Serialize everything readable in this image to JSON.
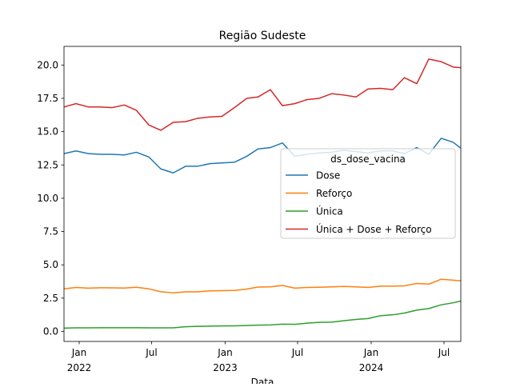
{
  "chart_data": {
    "type": "line",
    "title": "Região Sudeste",
    "xlabel": "Data",
    "ylabel": "",
    "x_type": "date",
    "xlim": [
      "2021-11-24",
      "2024-08-12"
    ],
    "ylim": [
      -0.75,
      21.4
    ],
    "yticks": [
      0.0,
      2.5,
      5.0,
      7.5,
      10.0,
      12.5,
      15.0,
      17.5,
      20.0
    ],
    "ytick_labels": [
      "0.0",
      "2.5",
      "5.0",
      "7.5",
      "10.0",
      "12.5",
      "15.0",
      "17.5",
      "20.0"
    ],
    "xticks": [
      {
        "date": "2022-01-01",
        "label": "Jan",
        "year": "2022"
      },
      {
        "date": "2022-07-01",
        "label": "Jul",
        "year": ""
      },
      {
        "date": "2023-01-01",
        "label": "Jan",
        "year": "2023"
      },
      {
        "date": "2023-07-01",
        "label": "Jul",
        "year": ""
      },
      {
        "date": "2024-01-01",
        "label": "Jan",
        "year": "2024"
      },
      {
        "date": "2024-07-01",
        "label": "Jul",
        "year": ""
      }
    ],
    "x": [
      "2021-11-24",
      "2021-12-24",
      "2022-01-24",
      "2022-02-24",
      "2022-03-24",
      "2022-04-24",
      "2022-05-24",
      "2022-06-24",
      "2022-07-24",
      "2022-08-24",
      "2022-09-24",
      "2022-10-24",
      "2022-11-24",
      "2022-12-24",
      "2023-01-24",
      "2023-02-24",
      "2023-03-24",
      "2023-04-24",
      "2023-05-24",
      "2023-06-24",
      "2023-07-24",
      "2023-08-24",
      "2023-09-24",
      "2023-10-24",
      "2023-11-24",
      "2023-12-24",
      "2024-01-24",
      "2024-02-24",
      "2024-03-24",
      "2024-04-24",
      "2024-05-24",
      "2024-06-24",
      "2024-07-24",
      "2024-08-12"
    ],
    "series": [
      {
        "name": "Dose",
        "color": "#1f77b4",
        "values": [
          13.35,
          13.55,
          13.35,
          13.3,
          13.3,
          13.25,
          13.45,
          13.1,
          12.2,
          11.9,
          12.4,
          12.4,
          12.6,
          12.65,
          12.7,
          13.15,
          13.7,
          13.8,
          14.15,
          13.15,
          13.3,
          13.4,
          13.45,
          13.6,
          13.5,
          13.4,
          13.55,
          13.55,
          13.35,
          13.8,
          13.3,
          14.5,
          14.2,
          13.75
        ]
      },
      {
        "name": "Reforço",
        "color": "#ff7f0e",
        "values": [
          3.2,
          3.3,
          3.25,
          3.28,
          3.27,
          3.26,
          3.32,
          3.2,
          2.98,
          2.9,
          2.97,
          2.97,
          3.05,
          3.06,
          3.08,
          3.18,
          3.33,
          3.35,
          3.45,
          3.25,
          3.3,
          3.32,
          3.35,
          3.38,
          3.35,
          3.3,
          3.4,
          3.4,
          3.42,
          3.6,
          3.55,
          3.92,
          3.85,
          3.8
        ]
      },
      {
        "name": "Única",
        "color": "#2ca02c",
        "values": [
          0.25,
          0.27,
          0.27,
          0.28,
          0.28,
          0.28,
          0.28,
          0.27,
          0.27,
          0.27,
          0.35,
          0.38,
          0.4,
          0.41,
          0.42,
          0.44,
          0.47,
          0.49,
          0.55,
          0.53,
          0.62,
          0.68,
          0.7,
          0.8,
          0.9,
          0.97,
          1.18,
          1.25,
          1.38,
          1.6,
          1.72,
          2.0,
          2.15,
          2.28
        ]
      },
      {
        "name": "Única + Dose + Reforço",
        "color": "#d62728",
        "values": [
          16.85,
          17.1,
          16.85,
          16.85,
          16.8,
          17.0,
          16.6,
          15.5,
          15.1,
          15.7,
          15.75,
          16.0,
          16.1,
          16.15,
          16.8,
          17.5,
          17.6,
          18.15,
          16.95,
          17.1,
          17.4,
          17.5,
          17.85,
          17.75,
          17.6,
          18.2,
          18.25,
          18.15,
          19.05,
          18.6,
          20.45,
          20.25,
          19.85,
          19.8
        ]
      }
    ],
    "legend": {
      "title": "ds_dose_vacina",
      "placement": "center-right"
    },
    "grid": false
  }
}
